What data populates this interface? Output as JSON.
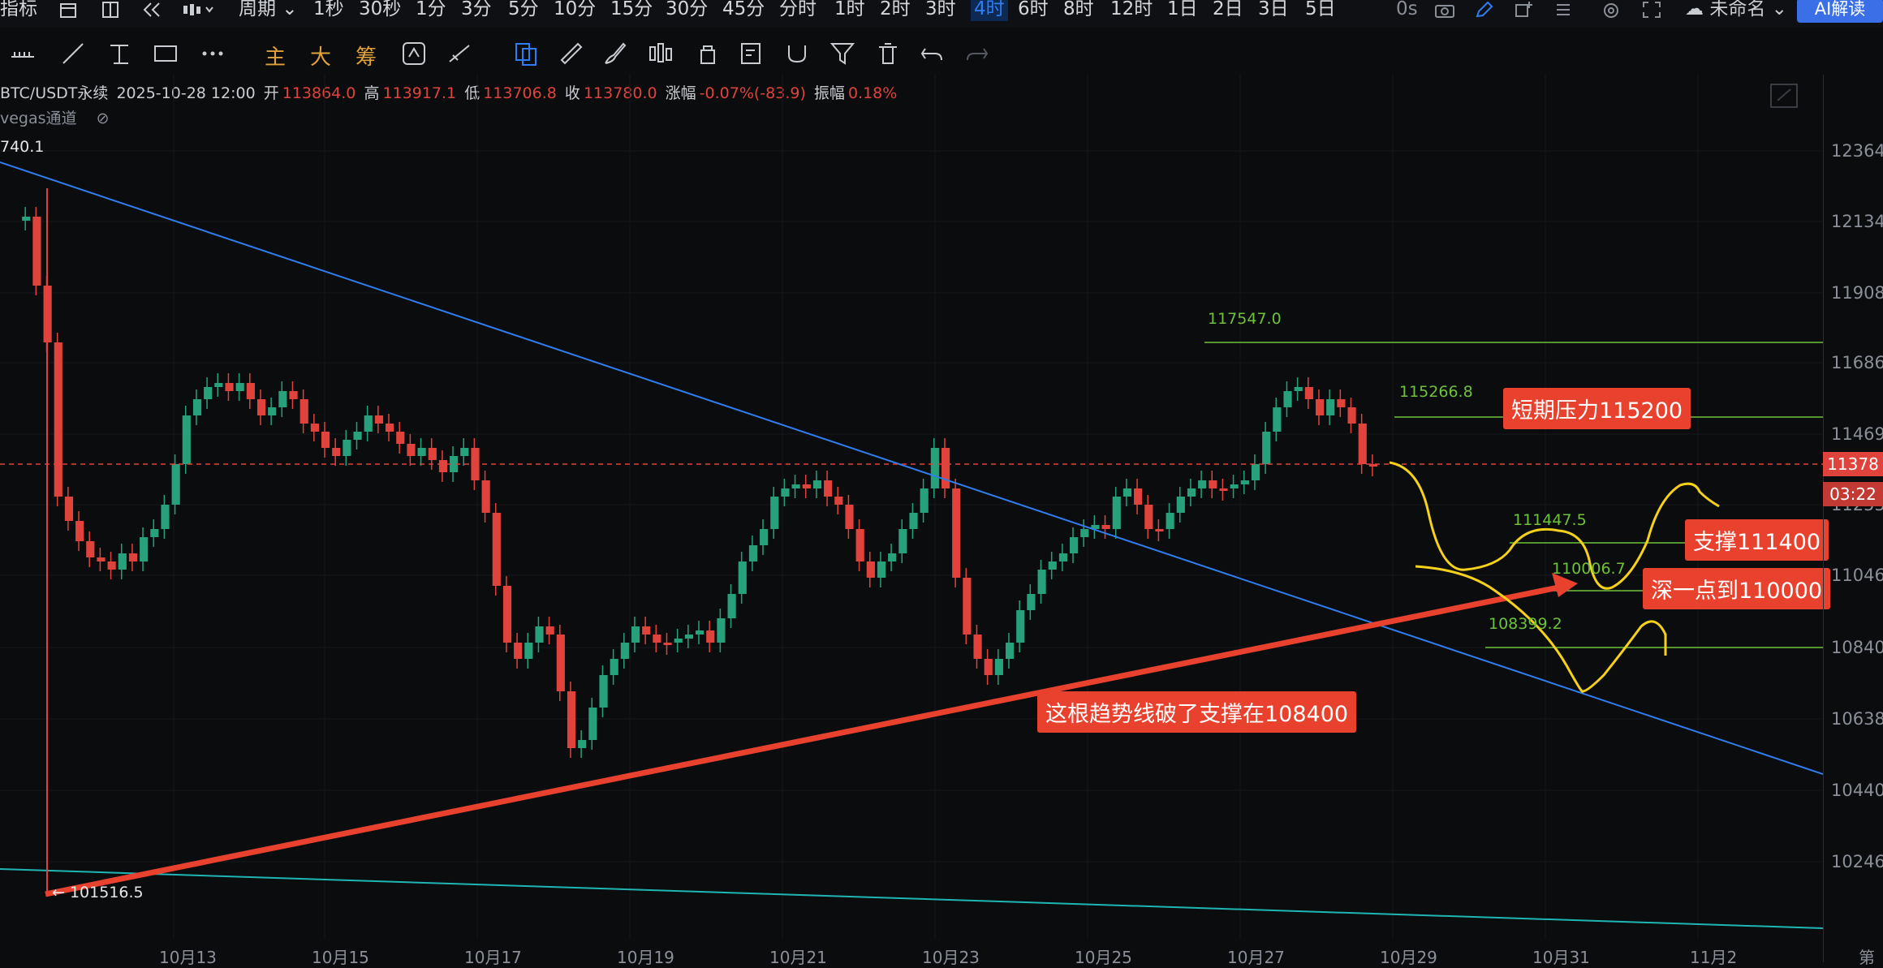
{
  "toolbar": {
    "indicator": "指标",
    "period": "周期",
    "intervals": [
      "1秒",
      "30秒",
      "1分",
      "3分",
      "5分",
      "10分",
      "15分",
      "30分",
      "45分",
      "分时",
      "1时",
      "2时",
      "3时",
      "4时",
      "6时",
      "8时",
      "12时",
      "1日",
      "2日",
      "3日",
      "5日"
    ],
    "active_interval": "4时",
    "timer": "0s",
    "layout_name": "未命名",
    "ai_button": "AI解读"
  },
  "drawing_tools": {
    "main": "主",
    "big": "大",
    "chip": "筹"
  },
  "info": {
    "symbol": "BTC/USDT永续",
    "datetime": "2025-10-28 12:00",
    "open_label": "开",
    "open": "113864.0",
    "high_label": "高",
    "high": "113917.1",
    "low_label": "低",
    "low": "113706.8",
    "close_label": "收",
    "close": "113780.0",
    "change_label": "涨幅",
    "change": "-0.07%(-83.9)",
    "amp_label": "振幅",
    "amp": "0.18%",
    "indicator_name": "vegas通道"
  },
  "chart": {
    "high_marker": "740.1",
    "low_marker": "← 101516.5",
    "current_price": "11378",
    "countdown": "03:22",
    "price_ticks": [
      "12364",
      "12134",
      "11908",
      "11686",
      "11469",
      "11255",
      "11046",
      "10840",
      "10638",
      "10440",
      "10246"
    ],
    "date_ticks": [
      "10月13",
      "10月15",
      "10月17",
      "10月19",
      "10月21",
      "10月23",
      "10月25",
      "10月27",
      "10月29",
      "10月31",
      "11月2",
      "第"
    ],
    "levels": [
      "117547.0",
      "115266.8",
      "111447.5",
      "110006.7",
      "108399.2"
    ],
    "annotations": {
      "resistance": "短期压力115200",
      "support": "支撑111400",
      "deep": "深一点到110000",
      "trend": "这根趋势线破了支撑在108400"
    },
    "colors": {
      "up": "#26a17b",
      "down": "#e0433b",
      "trend_blue": "#2f7ef0",
      "trend_cyan": "#1fb5b5",
      "trend_red": "#e8412e",
      "level": "#6ec23a",
      "path": "#f5d11a"
    }
  }
}
